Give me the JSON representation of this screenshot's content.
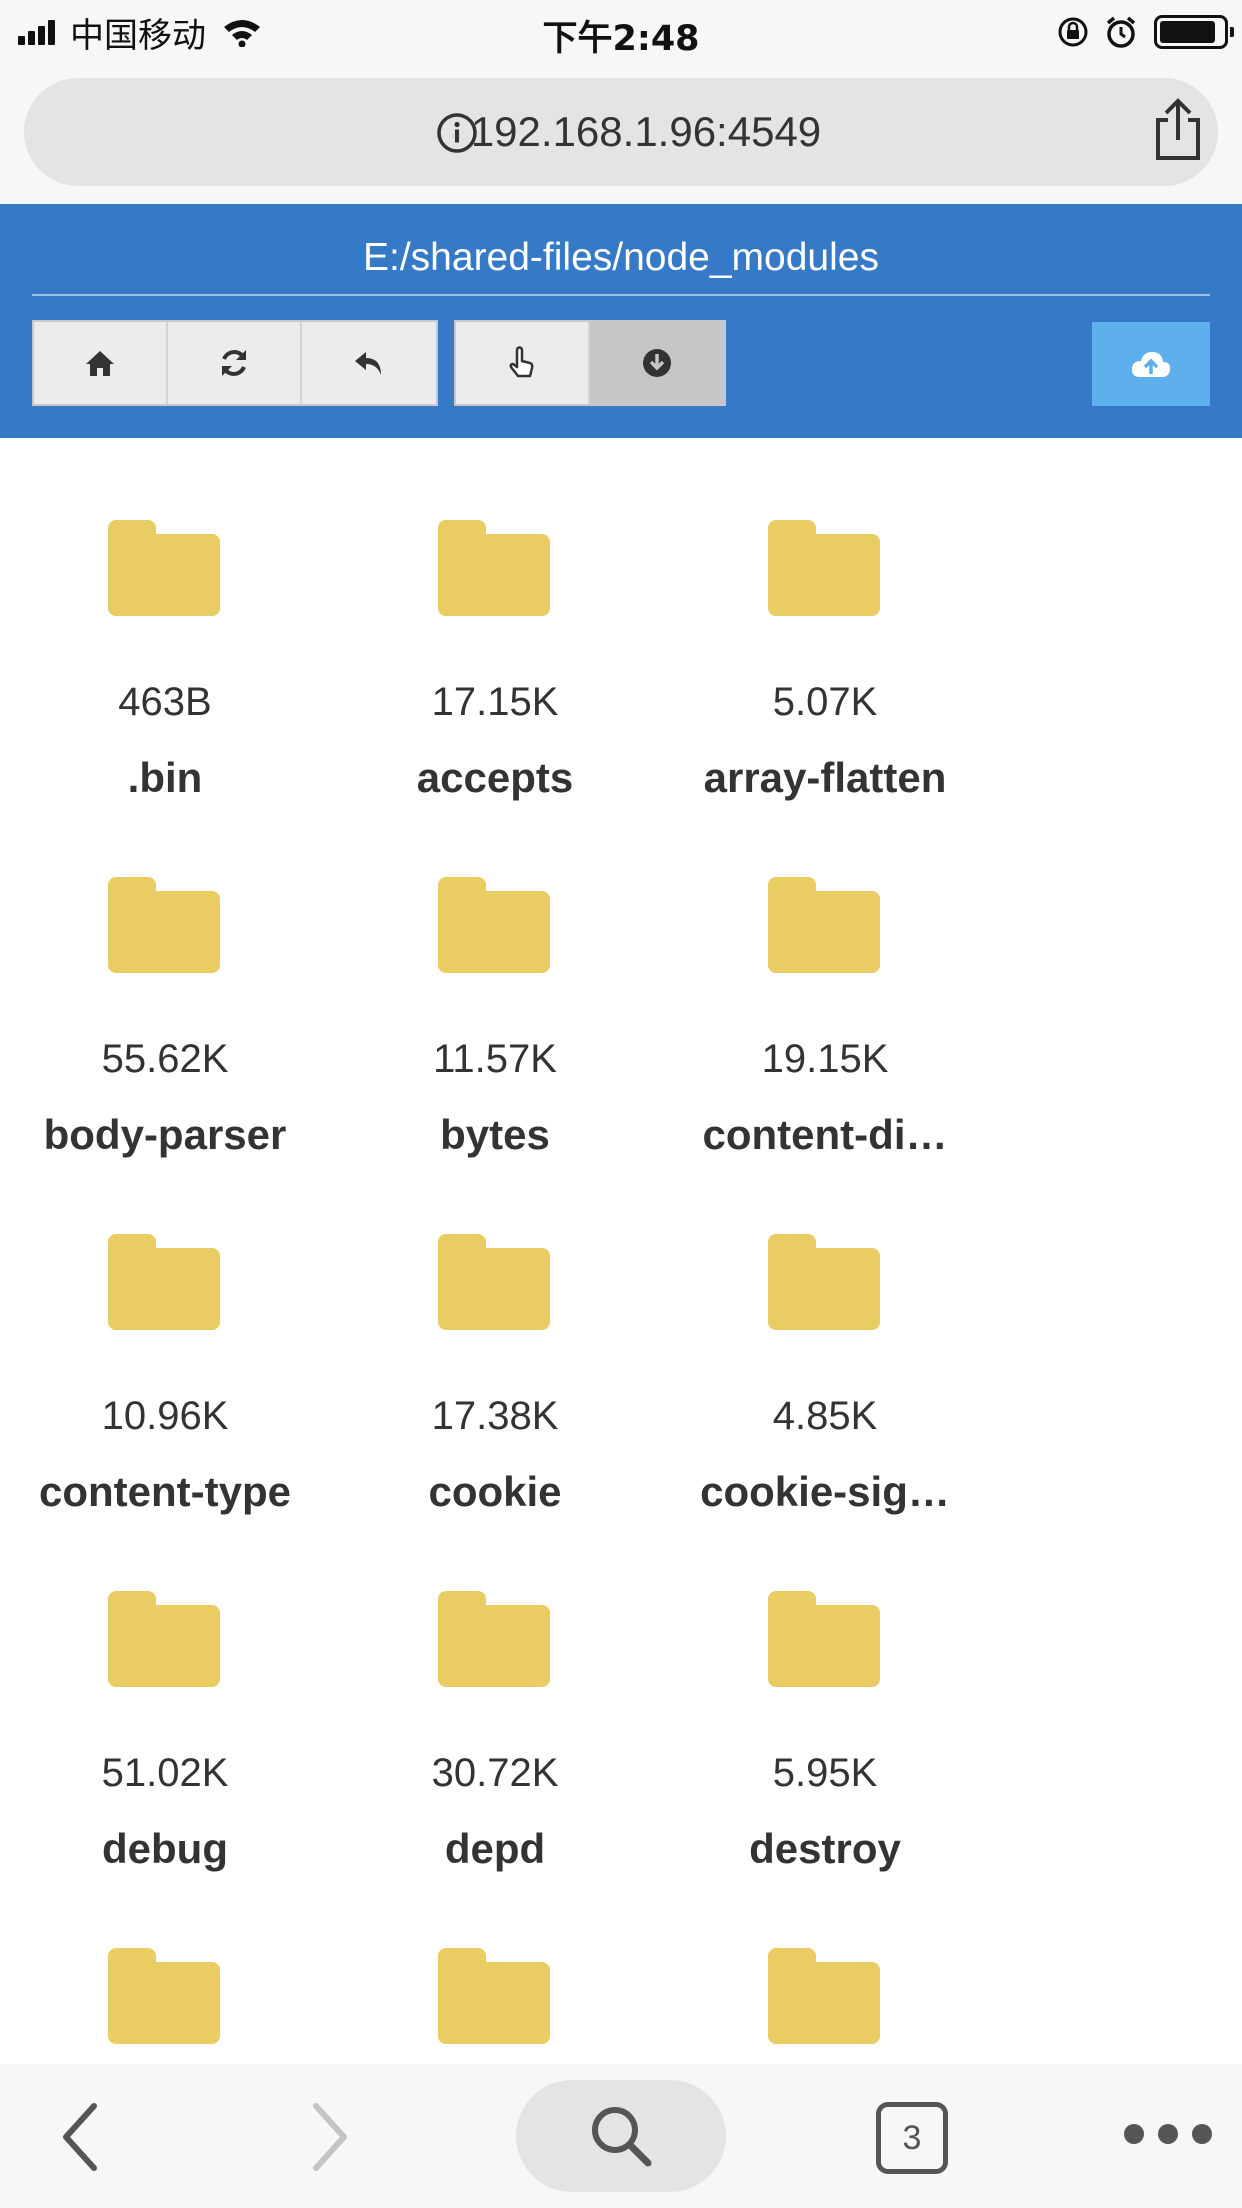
{
  "status_bar": {
    "carrier": "中国移动",
    "time": "下午2:48"
  },
  "url_bar": {
    "url": "192.168.1.96:4549"
  },
  "header": {
    "path": "E:/shared-files/node_modules"
  },
  "toolbar": {
    "buttons_left": [
      {
        "name": "home",
        "icon": "home-icon"
      },
      {
        "name": "refresh",
        "icon": "refresh-icon"
      },
      {
        "name": "back",
        "icon": "reply-icon"
      }
    ],
    "buttons_right": [
      {
        "name": "select",
        "icon": "hand-pointer-icon"
      },
      {
        "name": "download",
        "icon": "download-circle-icon",
        "active": true
      }
    ],
    "upload_icon": "cloud-upload-icon"
  },
  "files": [
    {
      "size": "463B",
      "name": ".bin"
    },
    {
      "size": "17.15K",
      "name": "accepts"
    },
    {
      "size": "5.07K",
      "name": "array-flatten"
    },
    {
      "size": "55.62K",
      "name": "body-parser"
    },
    {
      "size": "11.57K",
      "name": "bytes"
    },
    {
      "size": "19.15K",
      "name": "content-di…"
    },
    {
      "size": "10.96K",
      "name": "content-type"
    },
    {
      "size": "17.38K",
      "name": "cookie"
    },
    {
      "size": "4.85K",
      "name": "cookie-sig…"
    },
    {
      "size": "51.02K",
      "name": "debug"
    },
    {
      "size": "30.72K",
      "name": "depd"
    },
    {
      "size": "5.95K",
      "name": "destroy"
    },
    {
      "size": "",
      "name": ""
    },
    {
      "size": "",
      "name": ""
    },
    {
      "size": "",
      "name": ""
    }
  ],
  "bottom_bar": {
    "tab_count": "3"
  },
  "colors": {
    "header_bg": "#3679c6",
    "upload_bg": "#5eb0ec",
    "folder": "#e9cc62"
  }
}
